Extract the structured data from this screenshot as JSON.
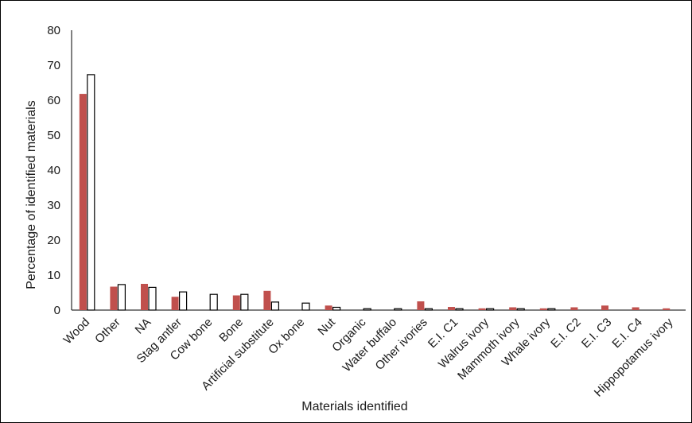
{
  "chart_data": {
    "type": "bar",
    "title": "",
    "xlabel": "Materials identified",
    "ylabel": "Percentage of identified materials",
    "ylim": [
      0,
      80
    ],
    "yticks": [
      0,
      10,
      20,
      30,
      40,
      50,
      60,
      70,
      80
    ],
    "grid": false,
    "legend": "none",
    "categories": [
      "Wood",
      "Other",
      "NA",
      "Stag antler",
      "Cow bone",
      "Bone",
      "Artificial substitute",
      "Ox bone",
      "Nut",
      "Organic",
      "Water buffalo",
      "Other ivories",
      "E.I. C1",
      "Walrus ivory",
      "Mammoth ivory",
      "Whale ivory",
      "E.I. C2",
      "E.I. C3",
      "E.I. C4",
      "Hippopotamus ivory"
    ],
    "series": [
      {
        "color": "#c0504d",
        "stroke": "#c0504d",
        "values": [
          61.8,
          6.7,
          7.5,
          3.8,
          0,
          4.2,
          5.5,
          0,
          1.3,
          0,
          0,
          2.5,
          0.9,
          0.5,
          0.8,
          0.5,
          0.8,
          1.3,
          0.8,
          0.5
        ]
      },
      {
        "color": "#ffffff",
        "stroke": "#000000",
        "values": [
          67.3,
          7.3,
          6.5,
          5.2,
          4.5,
          4.5,
          2.3,
          2.0,
          0.8,
          0.4,
          0.4,
          0.4,
          0.4,
          0.4,
          0.4,
          0.4,
          0,
          0,
          0,
          0
        ]
      }
    ]
  }
}
